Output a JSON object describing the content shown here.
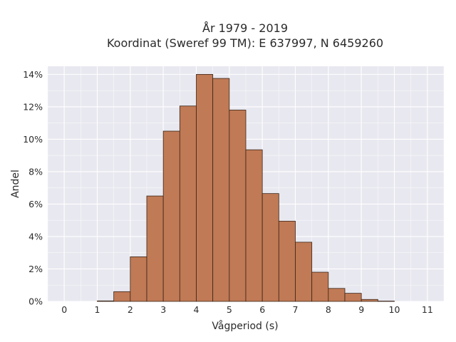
{
  "chart_data": {
    "type": "bar",
    "title_lines": [
      "År 1979 - 2019",
      "Koordinat (Sweref 99 TM): E 637997, N 6459260"
    ],
    "xlabel": "Vågperiod (s)",
    "ylabel": "Andel",
    "xlim": [
      -0.5,
      11.5
    ],
    "ylim": [
      0,
      14.5
    ],
    "x_ticks": [
      0,
      1,
      2,
      3,
      4,
      5,
      6,
      7,
      8,
      9,
      10,
      11
    ],
    "x_tick_labels": [
      "0",
      "1",
      "2",
      "3",
      "4",
      "5",
      "6",
      "7",
      "8",
      "9",
      "10",
      "11"
    ],
    "y_ticks": [
      0,
      2,
      4,
      6,
      8,
      10,
      12,
      14
    ],
    "y_tick_labels": [
      "0%",
      "2%",
      "4%",
      "6%",
      "8%",
      "10%",
      "12%",
      "14%"
    ],
    "bin_width": 0.5,
    "bins": [
      {
        "start": 1.0,
        "value": 0.03
      },
      {
        "start": 1.5,
        "value": 0.6
      },
      {
        "start": 2.0,
        "value": 2.75
      },
      {
        "start": 2.5,
        "value": 6.5
      },
      {
        "start": 3.0,
        "value": 10.5
      },
      {
        "start": 3.5,
        "value": 12.05
      },
      {
        "start": 4.0,
        "value": 14.0
      },
      {
        "start": 4.5,
        "value": 13.75
      },
      {
        "start": 5.0,
        "value": 11.8
      },
      {
        "start": 5.5,
        "value": 9.35
      },
      {
        "start": 6.0,
        "value": 6.65
      },
      {
        "start": 6.5,
        "value": 4.95
      },
      {
        "start": 7.0,
        "value": 3.65
      },
      {
        "start": 7.5,
        "value": 1.8
      },
      {
        "start": 8.0,
        "value": 0.8
      },
      {
        "start": 8.5,
        "value": 0.5
      },
      {
        "start": 9.0,
        "value": 0.12
      },
      {
        "start": 9.5,
        "value": 0.02
      }
    ],
    "grid": true,
    "colors": {
      "bar_fill": "#c07a55",
      "bar_stroke": "#3a2518",
      "plot_background": "#e8e8f0",
      "grid": "#ffffff"
    }
  }
}
